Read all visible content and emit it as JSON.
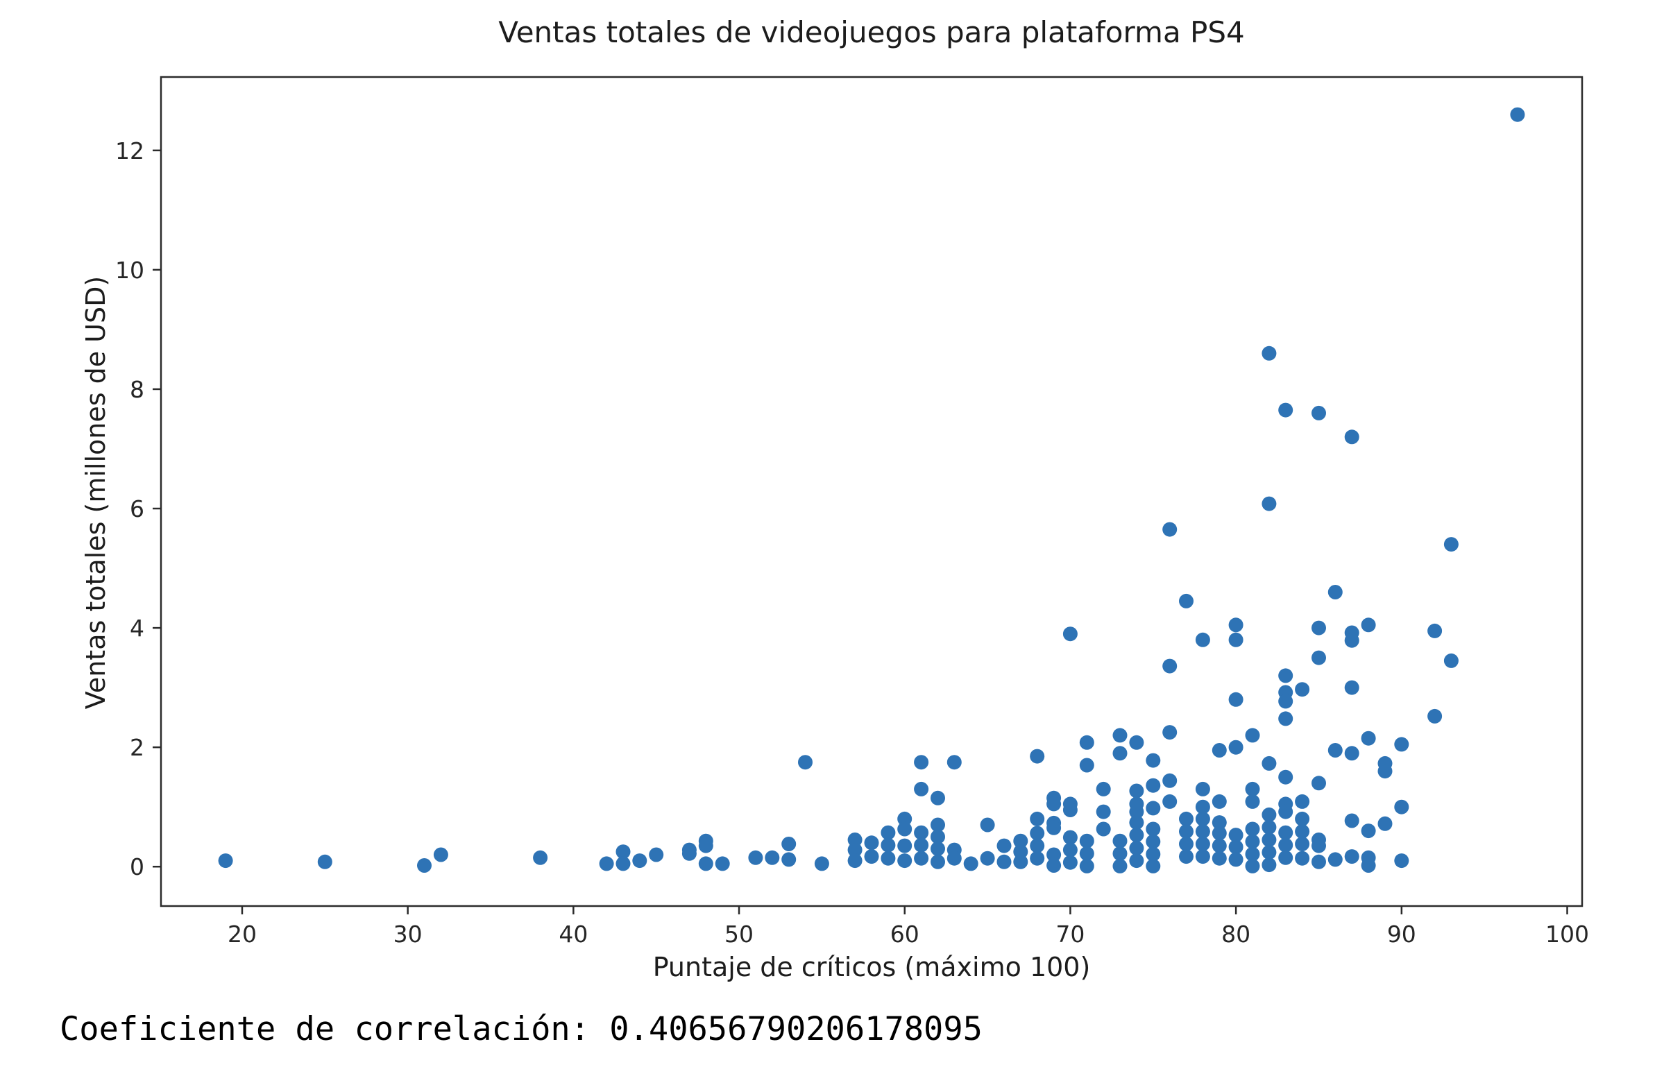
{
  "chart": {
    "title": "Ventas totales de videojuegos para plataforma PS4",
    "xlabel": "Puntaje de críticos (máximo 100)",
    "ylabel": "Ventas totales (millones de USD)",
    "marker_color": "#2e73b5",
    "axis_color": "#2b2b2b",
    "tick_label_color": "#262626"
  },
  "caption": {
    "text": "Coeficiente de correlación: 0.40656790206178095"
  },
  "chart_data": {
    "type": "scatter",
    "title": "Ventas totales de videojuegos para plataforma PS4",
    "xlabel": "Puntaje de críticos (máximo 100)",
    "ylabel": "Ventas totales (millones de USD)",
    "xlim": [
      15.1,
      100.9
    ],
    "ylim": [
      -0.66,
      13.23
    ],
    "xticks": [
      20,
      30,
      40,
      50,
      60,
      70,
      80,
      90,
      100
    ],
    "yticks": [
      0,
      2,
      4,
      6,
      8,
      10,
      12
    ],
    "grid": false,
    "legend": null,
    "points": [
      [
        19,
        0.1
      ],
      [
        25,
        0.08
      ],
      [
        31,
        0.02
      ],
      [
        32,
        0.2
      ],
      [
        38,
        0.15
      ],
      [
        42,
        0.05
      ],
      [
        43,
        0.25
      ],
      [
        43,
        0.05
      ],
      [
        44,
        0.1
      ],
      [
        45,
        0.2
      ],
      [
        47,
        0.28
      ],
      [
        47,
        0.22
      ],
      [
        48,
        0.43
      ],
      [
        48,
        0.35
      ],
      [
        48,
        0.05
      ],
      [
        49,
        0.05
      ],
      [
        51,
        0.15
      ],
      [
        52,
        0.15
      ],
      [
        53,
        0.38
      ],
      [
        53,
        0.12
      ],
      [
        54,
        1.75
      ],
      [
        55,
        0.05
      ],
      [
        57,
        0.45
      ],
      [
        57,
        0.28
      ],
      [
        57,
        0.1
      ],
      [
        58,
        0.4
      ],
      [
        58,
        0.17
      ],
      [
        59,
        0.57
      ],
      [
        59,
        0.36
      ],
      [
        59,
        0.14
      ],
      [
        60,
        0.8
      ],
      [
        60,
        0.63
      ],
      [
        60,
        0.35
      ],
      [
        60,
        0.1
      ],
      [
        61,
        1.75
      ],
      [
        61,
        1.3
      ],
      [
        61,
        0.57
      ],
      [
        61,
        0.36
      ],
      [
        61,
        0.14
      ],
      [
        62,
        1.15
      ],
      [
        62,
        0.7
      ],
      [
        62,
        0.5
      ],
      [
        62,
        0.3
      ],
      [
        62,
        0.08
      ],
      [
        63,
        1.75
      ],
      [
        63,
        0.28
      ],
      [
        63,
        0.14
      ],
      [
        64,
        0.05
      ],
      [
        65,
        0.7
      ],
      [
        65,
        0.14
      ],
      [
        66,
        0.35
      ],
      [
        66,
        0.08
      ],
      [
        67,
        0.43
      ],
      [
        67,
        0.25
      ],
      [
        67,
        0.08
      ],
      [
        68,
        1.85
      ],
      [
        68,
        0.8
      ],
      [
        68,
        0.56
      ],
      [
        68,
        0.35
      ],
      [
        68,
        0.14
      ],
      [
        69,
        1.15
      ],
      [
        69,
        1.05
      ],
      [
        69,
        0.73
      ],
      [
        69,
        0.65
      ],
      [
        69,
        0.2
      ],
      [
        69,
        0.02
      ],
      [
        70,
        3.9
      ],
      [
        70,
        1.05
      ],
      [
        70,
        0.95
      ],
      [
        70,
        0.49
      ],
      [
        70,
        0.28
      ],
      [
        70,
        0.07
      ],
      [
        71,
        2.08
      ],
      [
        71,
        1.7
      ],
      [
        71,
        0.43
      ],
      [
        71,
        0.22
      ],
      [
        71,
        0.01
      ],
      [
        72,
        1.3
      ],
      [
        72,
        0.92
      ],
      [
        72,
        0.63
      ],
      [
        73,
        2.2
      ],
      [
        73,
        1.9
      ],
      [
        73,
        0.43
      ],
      [
        73,
        0.22
      ],
      [
        73,
        0.01
      ],
      [
        74,
        2.08
      ],
      [
        74,
        1.27
      ],
      [
        74,
        1.05
      ],
      [
        74,
        0.92
      ],
      [
        74,
        0.74
      ],
      [
        74,
        0.53
      ],
      [
        74,
        0.31
      ],
      [
        74,
        0.1
      ],
      [
        75,
        1.78
      ],
      [
        75,
        1.36
      ],
      [
        75,
        0.98
      ],
      [
        75,
        0.63
      ],
      [
        75,
        0.42
      ],
      [
        75,
        0.21
      ],
      [
        75,
        0.01
      ],
      [
        76,
        5.65
      ],
      [
        76,
        3.36
      ],
      [
        76,
        2.25
      ],
      [
        76,
        1.44
      ],
      [
        76,
        1.09
      ],
      [
        77,
        4.45
      ],
      [
        77,
        0.8
      ],
      [
        77,
        0.59
      ],
      [
        77,
        0.38
      ],
      [
        77,
        0.17
      ],
      [
        78,
        3.8
      ],
      [
        78,
        1.3
      ],
      [
        78,
        1.0
      ],
      [
        78,
        0.8
      ],
      [
        78,
        0.59
      ],
      [
        78,
        0.38
      ],
      [
        78,
        0.17
      ],
      [
        79,
        1.95
      ],
      [
        79,
        1.09
      ],
      [
        79,
        0.74
      ],
      [
        79,
        0.56
      ],
      [
        79,
        0.35
      ],
      [
        79,
        0.14
      ],
      [
        80,
        4.05
      ],
      [
        80,
        3.8
      ],
      [
        80,
        2.8
      ],
      [
        80,
        2.0
      ],
      [
        80,
        0.53
      ],
      [
        80,
        0.33
      ],
      [
        80,
        0.12
      ],
      [
        81,
        2.2
      ],
      [
        81,
        1.3
      ],
      [
        81,
        1.09
      ],
      [
        81,
        0.63
      ],
      [
        81,
        0.42
      ],
      [
        81,
        0.21
      ],
      [
        81,
        0.01
      ],
      [
        82,
        8.6
      ],
      [
        82,
        6.08
      ],
      [
        82,
        1.73
      ],
      [
        82,
        0.87
      ],
      [
        82,
        0.66
      ],
      [
        82,
        0.45
      ],
      [
        82,
        0.24
      ],
      [
        82,
        0.03
      ],
      [
        83,
        7.65
      ],
      [
        83,
        3.2
      ],
      [
        83,
        2.92
      ],
      [
        83,
        2.77
      ],
      [
        83,
        2.48
      ],
      [
        83,
        1.5
      ],
      [
        83,
        1.05
      ],
      [
        83,
        0.92
      ],
      [
        83,
        0.57
      ],
      [
        83,
        0.36
      ],
      [
        83,
        0.15
      ],
      [
        84,
        2.97
      ],
      [
        84,
        1.09
      ],
      [
        84,
        0.8
      ],
      [
        84,
        0.59
      ],
      [
        84,
        0.38
      ],
      [
        84,
        0.14
      ],
      [
        85,
        7.6
      ],
      [
        85,
        4.0
      ],
      [
        85,
        3.5
      ],
      [
        85,
        1.4
      ],
      [
        85,
        0.45
      ],
      [
        85,
        0.35
      ],
      [
        85,
        0.08
      ],
      [
        86,
        4.6
      ],
      [
        86,
        1.95
      ],
      [
        86,
        0.12
      ],
      [
        87,
        7.2
      ],
      [
        87,
        3.92
      ],
      [
        87,
        3.79
      ],
      [
        87,
        3.0
      ],
      [
        87,
        1.9
      ],
      [
        87,
        0.77
      ],
      [
        87,
        0.17
      ],
      [
        88,
        4.05
      ],
      [
        88,
        2.15
      ],
      [
        88,
        0.6
      ],
      [
        88,
        0.15
      ],
      [
        88,
        0.02
      ],
      [
        89,
        1.73
      ],
      [
        89,
        1.6
      ],
      [
        89,
        0.72
      ],
      [
        90,
        2.05
      ],
      [
        90,
        1.0
      ],
      [
        90,
        0.1
      ],
      [
        92,
        3.95
      ],
      [
        92,
        2.52
      ],
      [
        93,
        5.4
      ],
      [
        93,
        3.45
      ],
      [
        97,
        12.6
      ]
    ]
  }
}
